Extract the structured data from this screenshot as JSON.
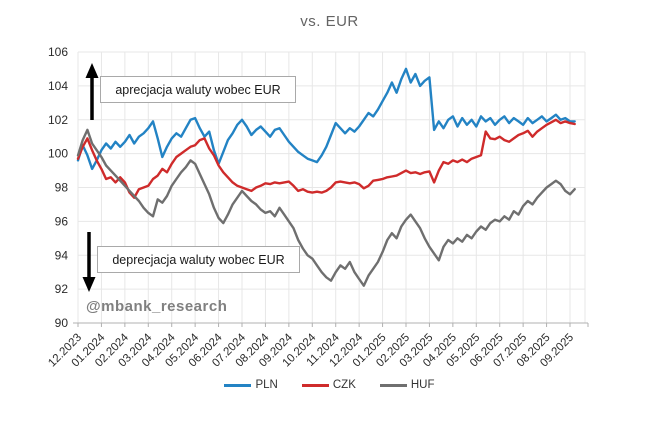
{
  "title": "vs. EUR",
  "watermark": "@mbank_research",
  "annotations": {
    "up": "aprecjacja waluty wobec EUR",
    "down": "deprecjacja waluty wobec EUR"
  },
  "colors": {
    "pln": "#2383c4",
    "czk": "#cf2b2b",
    "huf": "#6f6f6f",
    "grid": "#e7e7e7",
    "axis": "#b0b0b0",
    "tick_label": "#2b2b2b"
  },
  "chart_data": {
    "type": "line",
    "title": "vs. EUR",
    "xlabel": "",
    "ylabel": "",
    "grid": true,
    "legend_position": "bottom",
    "ylim": [
      90,
      106
    ],
    "y_ticks": [
      90,
      92,
      94,
      96,
      98,
      100,
      102,
      104,
      106
    ],
    "x_tick_labels": [
      "12.2023",
      "01.2024",
      "02.2024",
      "03.2024",
      "04.2024",
      "05.2024",
      "06.2024",
      "07.2024",
      "08.2024",
      "09.2024",
      "10.2024",
      "11.2024",
      "12.2024",
      "01.2025",
      "02.2025",
      "03.2025",
      "04.2025",
      "05.2025",
      "06.2025",
      "07.2025",
      "08.2025",
      "09.2025"
    ],
    "x_unit": "months from 12.2023",
    "x_start": 0,
    "x_step": 0.2,
    "series": [
      {
        "name": "PLN",
        "color": "#2383c4",
        "values": [
          99.6,
          100.5,
          99.9,
          99.1,
          99.6,
          100.2,
          100.6,
          100.3,
          100.7,
          100.4,
          100.7,
          101.1,
          100.6,
          101.0,
          101.2,
          101.5,
          101.9,
          100.9,
          99.8,
          100.4,
          100.9,
          101.2,
          101.0,
          101.5,
          102.0,
          102.1,
          101.5,
          101.0,
          101.3,
          100.2,
          99.4,
          100.1,
          100.8,
          101.2,
          101.7,
          102.0,
          101.6,
          101.1,
          101.4,
          101.6,
          101.3,
          101.0,
          101.4,
          101.5,
          101.1,
          100.7,
          100.4,
          100.1,
          99.9,
          99.7,
          99.6,
          99.5,
          99.9,
          100.4,
          101.1,
          101.8,
          101.5,
          101.2,
          101.5,
          101.3,
          101.6,
          102.0,
          102.4,
          102.2,
          102.6,
          103.1,
          103.6,
          104.2,
          103.6,
          104.4,
          105.0,
          104.2,
          104.7,
          104.0,
          104.3,
          104.5,
          101.4,
          101.9,
          101.5,
          102.0,
          102.2,
          101.6,
          102.1,
          101.7,
          102.0,
          101.6,
          102.2,
          101.9,
          102.1,
          101.7,
          102.0,
          102.2,
          101.8,
          102.1,
          101.9,
          101.7,
          102.1,
          101.8,
          102.0,
          102.2,
          101.9,
          102.1,
          102.3,
          102.0,
          102.1,
          101.9,
          101.9
        ]
      },
      {
        "name": "CZK",
        "color": "#cf2b2b",
        "values": [
          99.7,
          100.4,
          100.9,
          100.2,
          99.6,
          99.1,
          98.5,
          98.6,
          98.3,
          98.6,
          98.3,
          97.7,
          97.4,
          97.9,
          98.0,
          98.1,
          98.5,
          98.7,
          99.1,
          98.9,
          99.4,
          99.8,
          100.0,
          100.2,
          100.4,
          100.5,
          100.8,
          100.9,
          100.3,
          99.9,
          99.3,
          98.9,
          98.6,
          98.3,
          98.1,
          98.0,
          97.9,
          97.8,
          98.0,
          98.1,
          98.25,
          98.2,
          98.3,
          98.25,
          98.3,
          98.35,
          98.1,
          97.8,
          97.9,
          97.75,
          97.7,
          97.75,
          97.7,
          97.8,
          98.0,
          98.3,
          98.35,
          98.3,
          98.25,
          98.3,
          98.2,
          97.95,
          98.1,
          98.4,
          98.45,
          98.5,
          98.6,
          98.65,
          98.7,
          98.85,
          99.0,
          98.85,
          98.9,
          98.8,
          98.9,
          98.95,
          98.3,
          99.0,
          99.5,
          99.4,
          99.6,
          99.5,
          99.65,
          99.5,
          99.7,
          99.8,
          99.9,
          101.3,
          100.9,
          100.85,
          101.0,
          100.8,
          100.7,
          100.9,
          101.1,
          101.2,
          101.35,
          101.0,
          101.3,
          101.5,
          101.7,
          101.85,
          102.0,
          101.8,
          101.9,
          101.8,
          101.75
        ]
      },
      {
        "name": "HUF",
        "color": "#6f6f6f",
        "values": [
          99.9,
          100.8,
          101.4,
          100.6,
          100.2,
          99.8,
          99.3,
          99.0,
          98.7,
          98.4,
          98.1,
          97.8,
          97.5,
          97.2,
          96.8,
          96.5,
          96.3,
          97.3,
          97.1,
          97.5,
          98.1,
          98.5,
          98.9,
          99.2,
          99.6,
          99.4,
          98.8,
          98.2,
          97.6,
          96.8,
          96.2,
          95.9,
          96.4,
          97.0,
          97.4,
          97.8,
          97.5,
          97.2,
          97.0,
          96.7,
          96.5,
          96.6,
          96.3,
          96.8,
          96.4,
          96.0,
          95.6,
          94.9,
          94.4,
          94.0,
          93.8,
          93.4,
          93.0,
          92.7,
          92.5,
          93.0,
          93.4,
          93.2,
          93.6,
          93.0,
          92.6,
          92.2,
          92.8,
          93.2,
          93.6,
          94.2,
          94.9,
          95.3,
          95.0,
          95.7,
          96.1,
          96.4,
          96.0,
          95.6,
          95.0,
          94.5,
          94.1,
          93.7,
          94.5,
          94.9,
          94.7,
          95.0,
          94.8,
          95.2,
          95.0,
          95.4,
          95.7,
          95.5,
          95.9,
          96.1,
          96.0,
          96.3,
          96.1,
          96.6,
          96.4,
          96.9,
          97.2,
          97.0,
          97.4,
          97.7,
          98.0,
          98.2,
          98.4,
          98.2,
          97.8,
          97.6,
          97.9
        ]
      }
    ]
  }
}
